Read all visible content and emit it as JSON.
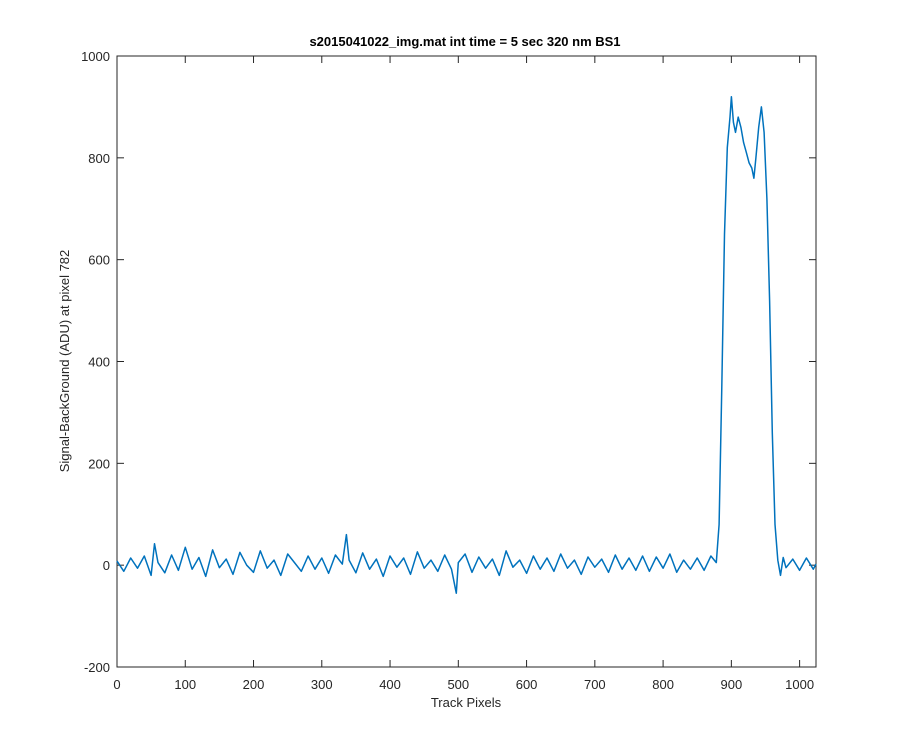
{
  "chart_data": {
    "type": "line",
    "title": "s2015041022_img.mat int time = 5 sec  320 nm BS1",
    "xlabel": "Track Pixels",
    "ylabel": "Signal-BackGround (ADU) at pixel 782",
    "xlim": [
      0,
      1024
    ],
    "ylim": [
      -200,
      1000
    ],
    "xticks": [
      0,
      100,
      200,
      300,
      400,
      500,
      600,
      700,
      800,
      900,
      1000
    ],
    "yticks": [
      -200,
      0,
      200,
      400,
      600,
      800,
      1000
    ],
    "grid": false,
    "line_color": "#0072BD",
    "series": [
      {
        "x": [
          0,
          10,
          20,
          30,
          40,
          50,
          55,
          60,
          70,
          80,
          90,
          100,
          110,
          120,
          130,
          140,
          150,
          160,
          170,
          180,
          190,
          200,
          210,
          220,
          230,
          240,
          250,
          260,
          270,
          280,
          290,
          300,
          310,
          320,
          330,
          336,
          340,
          350,
          360,
          370,
          380,
          390,
          400,
          410,
          420,
          430,
          440,
          450,
          460,
          470,
          480,
          490,
          497,
          500,
          510,
          520,
          530,
          540,
          550,
          560,
          570,
          580,
          590,
          600,
          610,
          620,
          630,
          640,
          650,
          660,
          670,
          680,
          690,
          700,
          710,
          720,
          730,
          740,
          750,
          760,
          770,
          780,
          790,
          800,
          810,
          820,
          830,
          840,
          850,
          860,
          870,
          878,
          882,
          886,
          890,
          894,
          898,
          900,
          903,
          906,
          910,
          914,
          918,
          922,
          926,
          930,
          933,
          936,
          940,
          944,
          948,
          952,
          956,
          960,
          964,
          968,
          972,
          976,
          980,
          990,
          1000,
          1010,
          1020,
          1024
        ],
        "y": [
          8,
          -12,
          14,
          -6,
          18,
          -20,
          42,
          5,
          -15,
          20,
          -10,
          35,
          -8,
          15,
          -22,
          30,
          -5,
          12,
          -18,
          25,
          0,
          -14,
          28,
          -6,
          10,
          -20,
          22,
          5,
          -12,
          18,
          -8,
          14,
          -16,
          20,
          2,
          60,
          10,
          -15,
          24,
          -8,
          12,
          -22,
          18,
          -4,
          14,
          -18,
          26,
          -6,
          10,
          -12,
          20,
          -8,
          -55,
          5,
          22,
          -14,
          16,
          -6,
          12,
          -20,
          28,
          -4,
          10,
          -16,
          18,
          -8,
          14,
          -12,
          22,
          -6,
          10,
          -18,
          16,
          -4,
          12,
          -14,
          20,
          -8,
          14,
          -10,
          18,
          -12,
          16,
          -6,
          22,
          -14,
          10,
          -8,
          14,
          -10,
          18,
          5,
          80,
          350,
          650,
          820,
          880,
          920,
          870,
          850,
          880,
          860,
          830,
          810,
          790,
          780,
          760,
          800,
          860,
          900,
          850,
          720,
          520,
          260,
          80,
          10,
          -20,
          15,
          -5,
          12,
          -10,
          14,
          -8,
          2
        ]
      }
    ]
  }
}
